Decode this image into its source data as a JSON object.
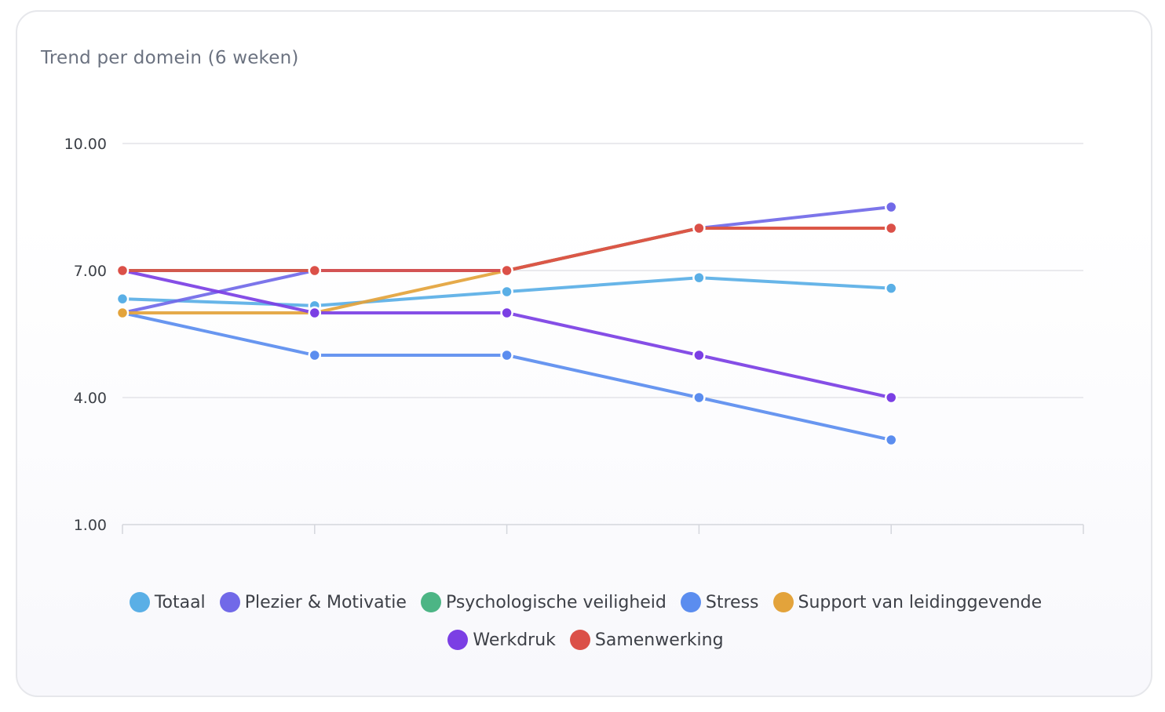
{
  "card": {
    "title": "Trend per domein (6 weken)"
  },
  "chart_data": {
    "type": "line",
    "title": "Trend per domein (6 weken)",
    "xlabel": "",
    "ylabel": "",
    "categories": [
      "",
      "",
      "",
      "",
      "",
      ""
    ],
    "ylim": [
      1,
      10
    ],
    "yticks": [
      "1.00",
      "4.00",
      "7.00",
      "10.00"
    ],
    "ytick_values": [
      1,
      4,
      7,
      10
    ],
    "grid": true,
    "legend_position": "bottom",
    "series": [
      {
        "name": "Totaal",
        "color": "#5aafe6",
        "values": [
          6.33,
          6.17,
          6.5,
          6.83,
          6.58,
          null
        ]
      },
      {
        "name": "Plezier & Motivatie",
        "color": "#7169e8",
        "values": [
          6.0,
          7.0,
          7.0,
          8.0,
          8.5,
          null
        ]
      },
      {
        "name": "Psychologische veiligheid",
        "color": "#4cb585",
        "values": [
          7.0,
          7.0,
          7.0,
          8.0,
          8.0,
          null
        ]
      },
      {
        "name": "Stress",
        "color": "#5b8def",
        "values": [
          6.0,
          5.0,
          5.0,
          4.0,
          3.0,
          null
        ]
      },
      {
        "name": "Support van leidinggevende",
        "color": "#e3a33b",
        "values": [
          6.0,
          6.0,
          7.0,
          8.0,
          8.0,
          null
        ]
      },
      {
        "name": "Werkdruk",
        "color": "#7b3fe4",
        "values": [
          7.0,
          6.0,
          6.0,
          5.0,
          4.0,
          null
        ]
      },
      {
        "name": "Samenwerking",
        "color": "#db5048",
        "values": [
          7.0,
          7.0,
          7.0,
          8.0,
          8.0,
          null
        ]
      }
    ]
  }
}
